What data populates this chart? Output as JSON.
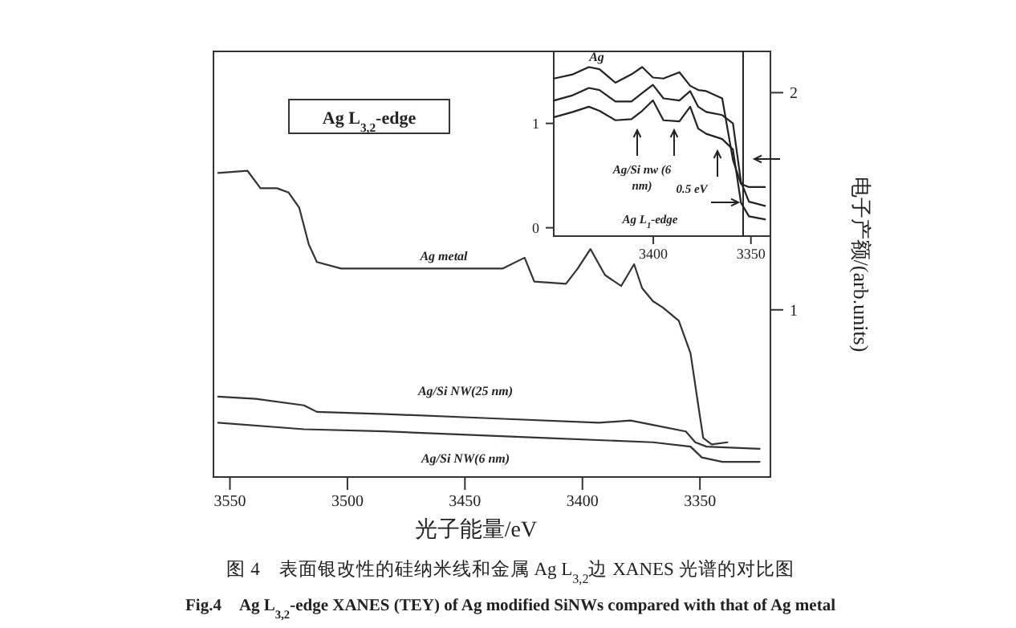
{
  "chart_data": [
    {
      "type": "line",
      "xlabel": "光子能量/eV",
      "ylabel": "电子产额/(arb.units)",
      "xlim": [
        3557,
        3320
      ],
      "ylim": [
        0.23,
        2.19
      ],
      "xticks": [
        3550,
        3500,
        3450,
        3400,
        3350
      ],
      "yticks": [
        1,
        2
      ],
      "series": [
        {
          "color": "#333333",
          "x": [
            3555,
            3542.5,
            3537,
            3530,
            3525,
            3520.5,
            3516.4,
            3513,
            3502.7,
            3461.6,
            3434,
            3424.6,
            3420.5,
            3407,
            3402,
            3396.6,
            3390.4,
            3383.5,
            3378,
            3374.6,
            3370,
            3365.7,
            3359,
            3354,
            3350.7,
            3348.6,
            3345,
            3338.3
          ],
          "values": [
            1.63,
            1.64,
            1.56,
            1.56,
            1.54,
            1.47,
            1.3,
            1.22,
            1.19,
            1.19,
            1.19,
            1.24,
            1.13,
            1.12,
            1.19,
            1.28,
            1.16,
            1.11,
            1.21,
            1.1,
            1.04,
            1.01,
            0.95,
            0.8,
            0.56,
            0.41,
            0.38,
            0.39
          ]
        },
        {
          "color": "#333333",
          "x": [
            3555,
            3539,
            3518.5,
            3513,
            3484,
            3438,
            3393,
            3379.5,
            3370,
            3356,
            3352,
            3347.2,
            3324.6
          ],
          "values": [
            0.6,
            0.59,
            0.56,
            0.53,
            0.52,
            0.5,
            0.48,
            0.49,
            0.47,
            0.44,
            0.39,
            0.37,
            0.36
          ]
        },
        {
          "color": "#333333",
          "x": [
            3555,
            3518.5,
            3484,
            3415.7,
            3370,
            3354,
            3349.2,
            3340.4,
            3324.6
          ],
          "values": [
            0.48,
            0.45,
            0.44,
            0.41,
            0.39,
            0.37,
            0.32,
            0.3,
            0.3
          ]
        }
      ],
      "annotations": [
        "Ag L$_{3,2}$-edge",
        {
          "text": "Ag metal",
          "x": 3459,
          "y": 1.23
        },
        "Ag/Si NW(25 nm)",
        "Ag/Si NW(6 nm)",
        "图 4　表面银改性的硅纳米线和金属 Ag L$_{3,2}$边 XANES 光谱的对比图",
        "Fig.4　Ag L$_{3,2}$-edge XANES (TEY) of Ag modified SiNWs compared with that of Ag metal"
      ]
    },
    {
      "type": "line",
      "xlim": [
        3451,
        3340
      ],
      "ylim": [
        -0.08,
        1.69
      ],
      "xticks": [
        3400,
        3350
      ],
      "yticks": [
        0,
        1
      ],
      "ref_lines": [
        {
          "axis": "x",
          "value": 3354
        }
      ],
      "series": [
        {
          "color": "#222222",
          "x": [
            3450.8,
            3441.2,
            3433,
            3427.6,
            3419.4,
            3411.2,
            3405.7,
            3400.2,
            3394.8,
            3386.6,
            3381.1,
            3377,
            3372.9,
            3364.7,
            3359.2,
            3355.1,
            3351,
            3342.8
          ],
          "values": [
            1.43,
            1.47,
            1.54,
            1.52,
            1.39,
            1.47,
            1.54,
            1.44,
            1.43,
            1.49,
            1.36,
            1.32,
            1.31,
            1.24,
            0.65,
            0.42,
            0.39,
            0.39
          ]
        },
        {
          "color": "#222222",
          "x": [
            3450.8,
            3441.2,
            3433,
            3427.6,
            3419.4,
            3411.2,
            3405.7,
            3400.2,
            3394.8,
            3386.6,
            3381.1,
            3377,
            3372.9,
            3364.7,
            3359.2,
            3355.1,
            3351,
            3342.8
          ],
          "values": [
            1.22,
            1.27,
            1.34,
            1.32,
            1.21,
            1.21,
            1.29,
            1.37,
            1.24,
            1.22,
            1.31,
            1.16,
            1.11,
            1.08,
            1.0,
            0.44,
            0.25,
            0.21
          ]
        },
        {
          "color": "#222222",
          "x": [
            3450.8,
            3441.2,
            3433,
            3427.6,
            3419.4,
            3411.2,
            3405.7,
            3400.2,
            3394.8,
            3386.6,
            3381.1,
            3377,
            3372.9,
            3364.7,
            3359.2,
            3355.1,
            3351,
            3342.8
          ],
          "values": [
            1.06,
            1.11,
            1.16,
            1.12,
            1.03,
            1.04,
            1.12,
            1.22,
            1.03,
            1.02,
            1.16,
            0.95,
            0.9,
            0.85,
            0.75,
            0.24,
            0.11,
            0.08
          ]
        }
      ],
      "annotations": [
        {
          "text": "Ag",
          "x": 3429,
          "y": 1.6
        },
        "Ag/Si nw (6 nm)",
        "0.5 eV",
        "Ag L$_{1}$-edge"
      ]
    }
  ]
}
